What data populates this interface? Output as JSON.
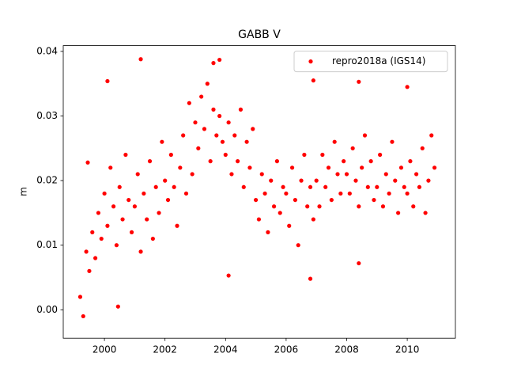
{
  "chart_data": {
    "type": "scatter",
    "title": "GABB V",
    "ylabel": "m",
    "xlim": [
      1998.64,
      2011.59
    ],
    "ylim": [
      -0.0044,
      0.0409
    ],
    "xticks": [
      2000,
      2002,
      2004,
      2006,
      2008,
      2010
    ],
    "yticks": [
      {
        "value": 0,
        "label": "0.00"
      },
      {
        "value": 0.01,
        "label": "0.01"
      },
      {
        "value": 0.02,
        "label": "0.02"
      },
      {
        "value": 0.03,
        "label": "0.03"
      },
      {
        "value": 0.04,
        "label": "0.04"
      }
    ],
    "legend": "upper right",
    "series": [
      {
        "name": "repro2018a (IGS14)",
        "color": "#ff0000",
        "x": [
          1999.2,
          1999.3,
          1999.4,
          1999.5,
          1999.6,
          1999.7,
          1999.8,
          1999.9,
          2000.0,
          2000.1,
          2000.2,
          2000.3,
          2000.4,
          2000.5,
          2000.6,
          2000.7,
          2000.8,
          2000.9,
          2001.0,
          2001.1,
          2001.2,
          2001.3,
          2001.4,
          2001.5,
          2001.6,
          2001.7,
          2001.8,
          2001.9,
          2002.0,
          2002.1,
          2002.2,
          2002.3,
          2002.4,
          2002.5,
          2002.6,
          2002.7,
          2002.8,
          2002.9,
          2003.0,
          2003.1,
          2003.2,
          2003.3,
          2003.4,
          2003.5,
          2003.6,
          2003.7,
          2003.8,
          2003.9,
          2004.0,
          2004.1,
          2004.2,
          2004.3,
          2004.4,
          2004.5,
          2004.6,
          2004.7,
          2004.8,
          2004.9,
          2005.0,
          2005.1,
          2005.2,
          2005.3,
          2005.4,
          2005.5,
          2005.6,
          2005.7,
          2005.8,
          2005.9,
          2006.0,
          2006.1,
          2006.2,
          2006.3,
          2006.4,
          2006.5,
          2006.6,
          2006.7,
          2006.8,
          2006.9,
          2007.0,
          2007.1,
          2007.2,
          2007.3,
          2007.4,
          2007.5,
          2007.6,
          2007.7,
          2007.8,
          2007.9,
          2008.0,
          2008.1,
          2008.2,
          2008.3,
          2008.4,
          2008.5,
          2008.6,
          2008.7,
          2008.8,
          2008.9,
          2009.0,
          2009.1,
          2009.2,
          2009.3,
          2009.4,
          2009.5,
          2009.6,
          2009.7,
          2009.8,
          2009.9,
          2010.0,
          2010.1,
          2010.2,
          2010.3,
          2010.4,
          2010.5,
          2010.6,
          2010.7,
          2010.8,
          2010.9,
          2001.2,
          2000.1,
          2003.8,
          2006.9,
          2008.4,
          2004.1,
          2000.45,
          2010.0,
          1999.45,
          2006.8,
          2008.4,
          2003.6
        ],
        "values": [
          0.002,
          -0.001,
          0.009,
          0.006,
          0.012,
          0.008,
          0.015,
          0.011,
          0.018,
          0.013,
          0.022,
          0.016,
          0.01,
          0.019,
          0.014,
          0.024,
          0.017,
          0.012,
          0.016,
          0.021,
          0.009,
          0.018,
          0.014,
          0.023,
          0.011,
          0.019,
          0.015,
          0.026,
          0.02,
          0.017,
          0.024,
          0.019,
          0.013,
          0.022,
          0.027,
          0.018,
          0.032,
          0.021,
          0.029,
          0.025,
          0.033,
          0.028,
          0.035,
          0.023,
          0.031,
          0.027,
          0.03,
          0.026,
          0.024,
          0.029,
          0.021,
          0.027,
          0.023,
          0.031,
          0.019,
          0.026,
          0.022,
          0.028,
          0.017,
          0.014,
          0.021,
          0.018,
          0.012,
          0.02,
          0.016,
          0.023,
          0.015,
          0.019,
          0.018,
          0.013,
          0.022,
          0.017,
          0.01,
          0.02,
          0.024,
          0.016,
          0.019,
          0.014,
          0.02,
          0.016,
          0.024,
          0.019,
          0.022,
          0.017,
          0.026,
          0.021,
          0.018,
          0.023,
          0.021,
          0.018,
          0.025,
          0.02,
          0.016,
          0.022,
          0.027,
          0.019,
          0.023,
          0.017,
          0.019,
          0.024,
          0.016,
          0.021,
          0.018,
          0.026,
          0.02,
          0.015,
          0.022,
          0.019,
          0.018,
          0.023,
          0.016,
          0.021,
          0.019,
          0.025,
          0.015,
          0.02,
          0.027,
          0.022,
          0.0388,
          0.0354,
          0.0387,
          0.0355,
          0.0353,
          0.0053,
          0.0005,
          0.0345,
          0.0228,
          0.0048,
          0.0072,
          0.0382
        ]
      }
    ]
  }
}
